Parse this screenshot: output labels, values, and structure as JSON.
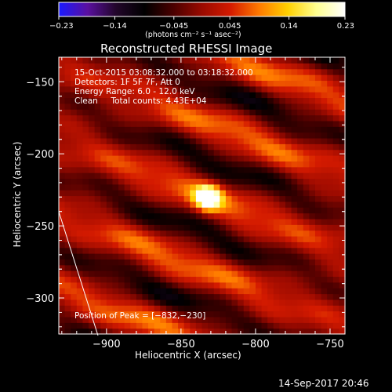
{
  "chart_data": {
    "type": "heatmap",
    "title": "Reconstructed RHESSI Image",
    "xlabel": "Heliocentric X (arcsec)",
    "ylabel": "Heliocentric Y (arcsec)",
    "xlim": [
      -932,
      -740
    ],
    "ylim": [
      -325,
      -133
    ],
    "x_ticks": [
      -900,
      -850,
      -800,
      -750
    ],
    "x_tick_labels": [
      "−900",
      "−850",
      "−800",
      "−750"
    ],
    "y_ticks": [
      -150,
      -200,
      -250,
      -300
    ],
    "y_tick_labels": [
      "−150",
      "−200",
      "−250",
      "−300"
    ],
    "colorbar": {
      "range": [
        -0.23,
        0.23
      ],
      "ticks": [
        -0.23,
        -0.14,
        -0.045,
        0.045,
        0.14,
        0.23
      ],
      "tick_labels": [
        "−0.23",
        "−0.14",
        "−0.045",
        "0.045",
        "0.14",
        "0.23"
      ],
      "unit_label": "(photons cm⁻² s⁻¹ asec⁻²)"
    },
    "peak": {
      "x": -832,
      "y": -230,
      "value": 0.23
    },
    "info_lines": [
      "15-Oct-2015 03:08:32.000 to 03:18:32.000",
      "Detectors: 1F 5F 7F, Att 0",
      "Energy Range: 6.0 - 12.0 keV",
      "Clean     Total counts: 4.43E+04"
    ],
    "peak_label": "Position of Peak = [−832,−230]",
    "timestamp": "14-Sep-2017 20:46",
    "colors": {
      "min": "#1a1aff",
      "zero": "#000000",
      "max": "#ffffff",
      "scale": [
        "#1a1aff",
        "#5a10a0",
        "#22062a",
        "#000000",
        "#4a0000",
        "#9a0a00",
        "#d41a00",
        "#ff7a00",
        "#ffd000",
        "#ffff90",
        "#ffffff"
      ]
    },
    "grid": false
  }
}
